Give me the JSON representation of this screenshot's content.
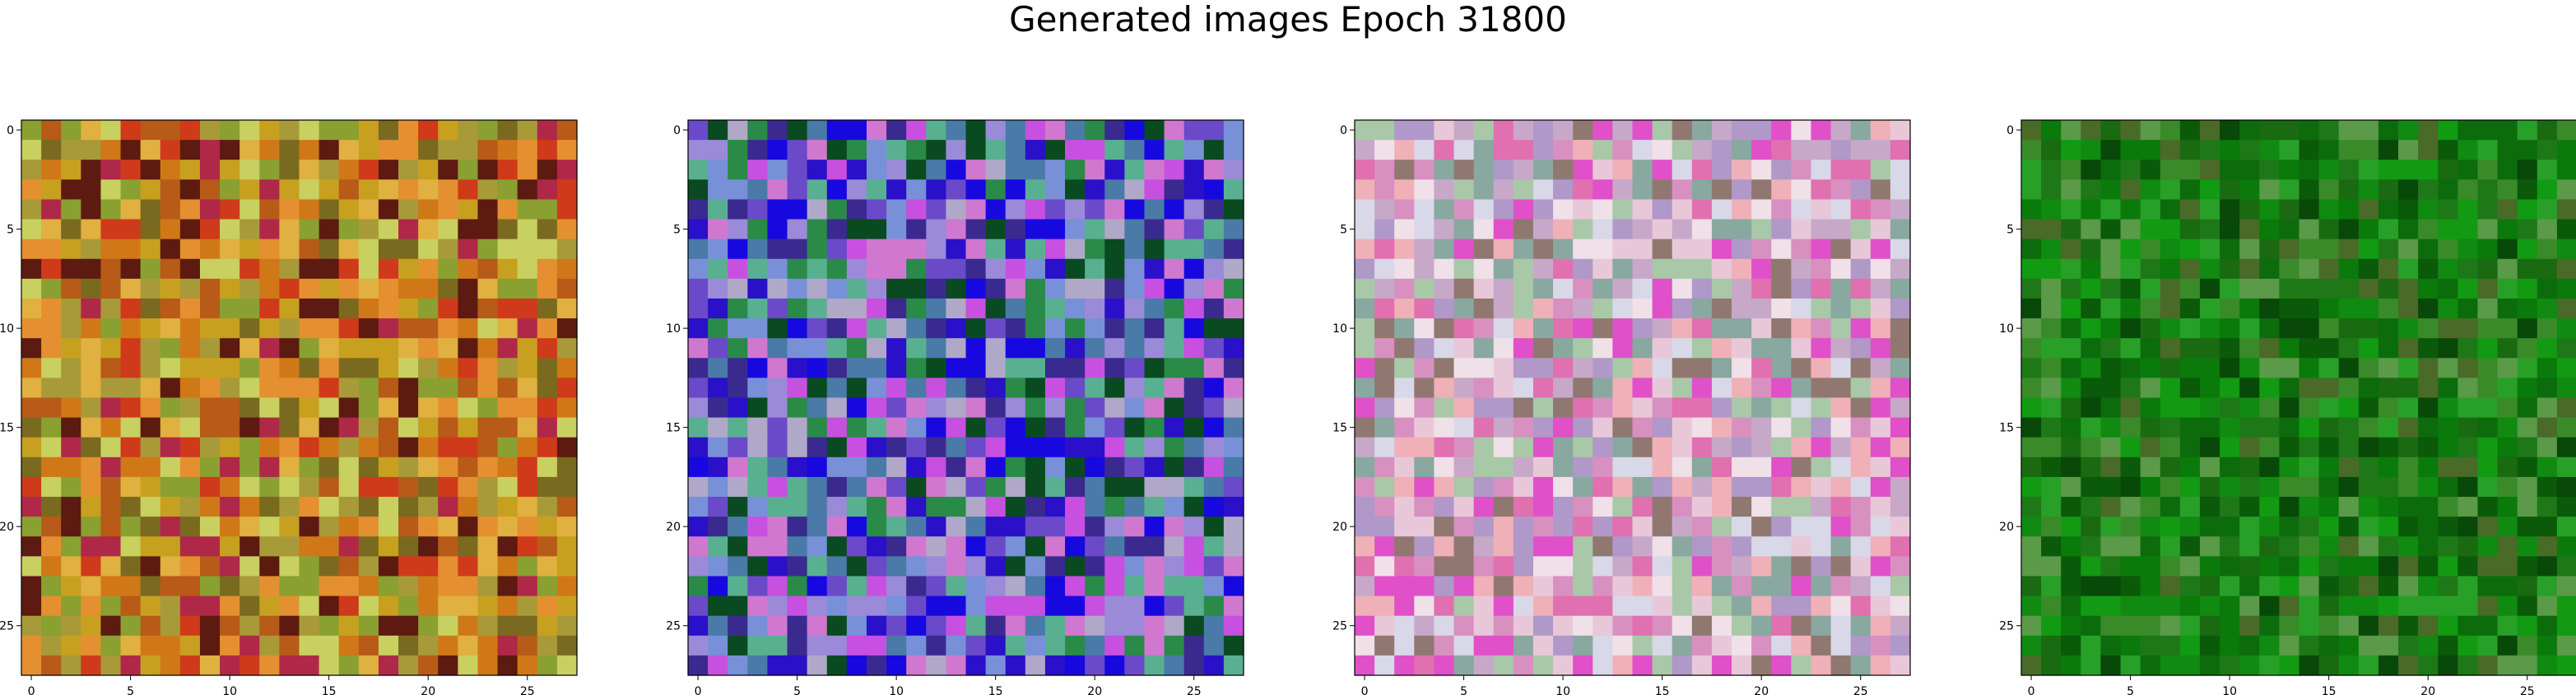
{
  "figure": {
    "title": "Generated images Epoch 31800"
  },
  "chart_data": [
    {
      "type": "heatmap",
      "xlim": [
        -0.5,
        27.5
      ],
      "ylim": [
        27.5,
        -0.5
      ],
      "x_ticks": [
        0,
        5,
        10,
        15,
        20,
        25
      ],
      "y_ticks": [
        0,
        5,
        10,
        15,
        20,
        25
      ],
      "grid": false,
      "palette": [
        "#c8a020",
        "#d07818",
        "#b85a18",
        "#cf3a1a",
        "#e0b040",
        "#a89a38",
        "#b02848",
        "#5c1a10",
        "#8aa030",
        "#c8d060",
        "#7a6a20",
        "#e49030"
      ]
    },
    {
      "type": "heatmap",
      "xlim": [
        -0.5,
        27.5
      ],
      "ylim": [
        27.5,
        -0.5
      ],
      "x_ticks": [
        0,
        5,
        10,
        15,
        20,
        25
      ],
      "y_ticks": [
        0,
        5,
        10,
        15,
        20,
        25
      ],
      "grid": false,
      "palette": [
        "#9a8ad8",
        "#6a4ac8",
        "#2a10c8",
        "#1808e0",
        "#4a7aa8",
        "#58b090",
        "#2a8a48",
        "#d078d0",
        "#7890d8",
        "#b0a8c8",
        "#0a4a20",
        "#c850e0",
        "#3a2a90"
      ]
    },
    {
      "type": "heatmap",
      "xlim": [
        -0.5,
        27.5
      ],
      "ylim": [
        27.5,
        -0.5
      ],
      "x_ticks": [
        0,
        5,
        10,
        15,
        20,
        25
      ],
      "y_ticks": [
        0,
        5,
        10,
        15,
        20,
        25
      ],
      "grid": false,
      "palette": [
        "#e8c8d8",
        "#f0e0e8",
        "#d890c0",
        "#c8a8c8",
        "#e070b0",
        "#a8c8a8",
        "#d8d8e8",
        "#f0b0b8",
        "#b098c8",
        "#88a8a0",
        "#e050c8",
        "#907870"
      ]
    },
    {
      "type": "heatmap",
      "xlim": [
        -0.5,
        27.5
      ],
      "ylim": [
        27.5,
        -0.5
      ],
      "x_ticks": [
        0,
        5,
        10,
        15,
        20,
        25
      ],
      "y_ticks": [
        0,
        5,
        10,
        15,
        20,
        25
      ],
      "grid": false,
      "palette": [
        "#0a7a0a",
        "#108a10",
        "#1a6a12",
        "#0a5a0a",
        "#28a028",
        "#3a8a2a",
        "#084808",
        "#5a9a48",
        "#129a12",
        "#1e7818",
        "#4a6a28",
        "#0c6c0c"
      ]
    }
  ]
}
